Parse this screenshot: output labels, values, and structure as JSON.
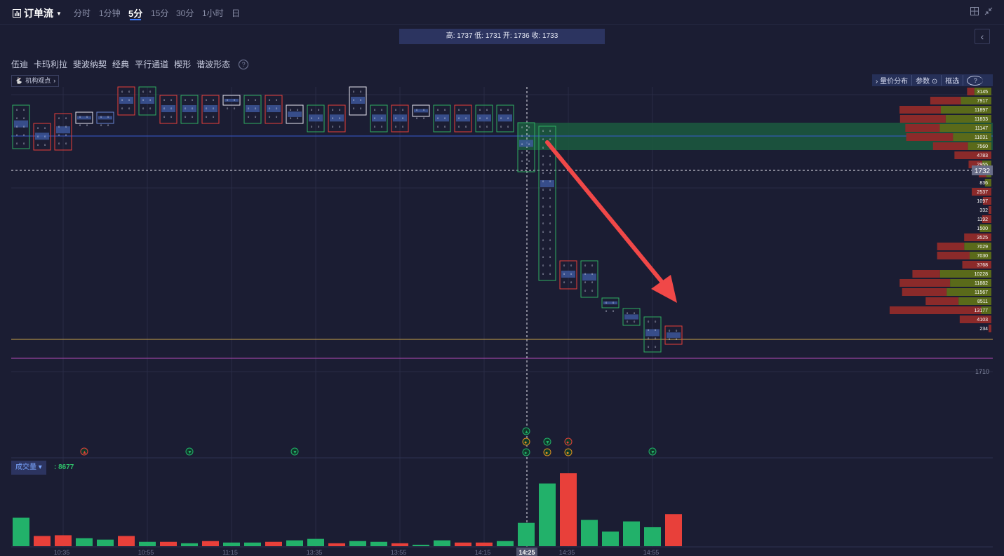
{
  "header": {
    "title": "订单流",
    "timeframes": [
      "分时",
      "1分钟",
      "5分",
      "15分",
      "30分",
      "1小时",
      "日"
    ],
    "active_timeframe": "5分"
  },
  "info_box": "高: 1737 低: 1731 开: 1736 收: 1733",
  "toolbar": {
    "tools": [
      "伍迪",
      "卡玛利拉",
      "斐波纳契",
      "经典",
      "平行通道",
      "楔形",
      "谐波形态"
    ],
    "help": "?",
    "inst_button": "机构观点"
  },
  "right_tools": {
    "profile": "量价分布",
    "params": "参数",
    "select": "框选",
    "help": "?"
  },
  "price_scale": {
    "current": "1732",
    "bottom": "1710"
  },
  "price_levels": [
    {
      "vol": "3145",
      "r": 0.3,
      "g": 0.7
    },
    {
      "vol": "7917",
      "r": 0.5,
      "g": 0.5
    },
    {
      "vol": "11897",
      "r": 0.45,
      "g": 0.55
    },
    {
      "vol": "11833",
      "r": 0.5,
      "g": 0.5
    },
    {
      "vol": "11147",
      "r": 0.4,
      "g": 0.6
    },
    {
      "vol": "11031",
      "r": 0.55,
      "g": 0.45
    },
    {
      "vol": "7560",
      "r": 0.6,
      "g": 0.4
    },
    {
      "vol": "4783",
      "r": 1.0,
      "g": 0.0
    },
    {
      "vol": "2955",
      "r": 0.6,
      "g": 0.4
    },
    {
      "vol": "1630",
      "r": 0.6,
      "g": 0.4
    },
    {
      "vol": "836",
      "r": 0.0,
      "g": 1.0
    },
    {
      "vol": "2537",
      "r": 1.0,
      "g": 0.0
    },
    {
      "vol": "1097",
      "r": 1.0,
      "g": 0.0
    },
    {
      "vol": "332",
      "r": 1.0,
      "g": 0.0
    },
    {
      "vol": "1192",
      "r": 1.0,
      "g": 0.0
    },
    {
      "vol": "1500",
      "r": 0.0,
      "g": 1.0
    },
    {
      "vol": "3525",
      "r": 1.0,
      "g": 0.0
    },
    {
      "vol": "7029",
      "r": 0.5,
      "g": 0.5
    },
    {
      "vol": "7030",
      "r": 0.6,
      "g": 0.4
    },
    {
      "vol": "3768",
      "r": 1.0,
      "g": 0.0
    },
    {
      "vol": "10228",
      "r": 0.35,
      "g": 0.65
    },
    {
      "vol": "11882",
      "r": 0.55,
      "g": 0.45
    },
    {
      "vol": "11567",
      "r": 0.5,
      "g": 0.5
    },
    {
      "vol": "8511",
      "r": 0.5,
      "g": 0.5
    },
    {
      "vol": "13177",
      "r": 0.9,
      "g": 0.1
    },
    {
      "vol": "4103",
      "r": 1.0,
      "g": 0.0
    },
    {
      "vol": "234",
      "r": 1.0,
      "g": 0.0
    }
  ],
  "time_labels": [
    "10:35",
    "10:55",
    "11:15",
    "13:35",
    "13:55",
    "14:15",
    "14:25",
    "14:35",
    "14:55"
  ],
  "cursor_time": "14:25",
  "volume": {
    "label": "成交量",
    "value": ": 8677",
    "bars": [
      {
        "v": 0.39,
        "c": "green"
      },
      {
        "v": 0.14,
        "c": "red"
      },
      {
        "v": 0.15,
        "c": "red"
      },
      {
        "v": 0.11,
        "c": "green"
      },
      {
        "v": 0.09,
        "c": "green"
      },
      {
        "v": 0.14,
        "c": "red"
      },
      {
        "v": 0.06,
        "c": "green"
      },
      {
        "v": 0.06,
        "c": "red"
      },
      {
        "v": 0.04,
        "c": "green"
      },
      {
        "v": 0.07,
        "c": "red"
      },
      {
        "v": 0.05,
        "c": "green"
      },
      {
        "v": 0.05,
        "c": "green"
      },
      {
        "v": 0.06,
        "c": "red"
      },
      {
        "v": 0.08,
        "c": "green"
      },
      {
        "v": 0.1,
        "c": "green"
      },
      {
        "v": 0.04,
        "c": "red"
      },
      {
        "v": 0.07,
        "c": "green"
      },
      {
        "v": 0.06,
        "c": "green"
      },
      {
        "v": 0.04,
        "c": "red"
      },
      {
        "v": 0.02,
        "c": "green"
      },
      {
        "v": 0.08,
        "c": "green"
      },
      {
        "v": 0.05,
        "c": "red"
      },
      {
        "v": 0.05,
        "c": "red"
      },
      {
        "v": 0.07,
        "c": "green"
      },
      {
        "v": 0.32,
        "c": "green"
      },
      {
        "v": 0.86,
        "c": "green"
      },
      {
        "v": 1.0,
        "c": "red"
      },
      {
        "v": 0.36,
        "c": "green"
      },
      {
        "v": 0.2,
        "c": "green"
      },
      {
        "v": 0.34,
        "c": "green"
      },
      {
        "v": 0.26,
        "c": "green"
      },
      {
        "v": 0.44,
        "c": "red"
      }
    ]
  },
  "colors": {
    "green": "#22b16a",
    "red": "#e8403a",
    "bg": "#1b1d33",
    "accent": "#3d7bff",
    "arrow": "#f04848"
  }
}
